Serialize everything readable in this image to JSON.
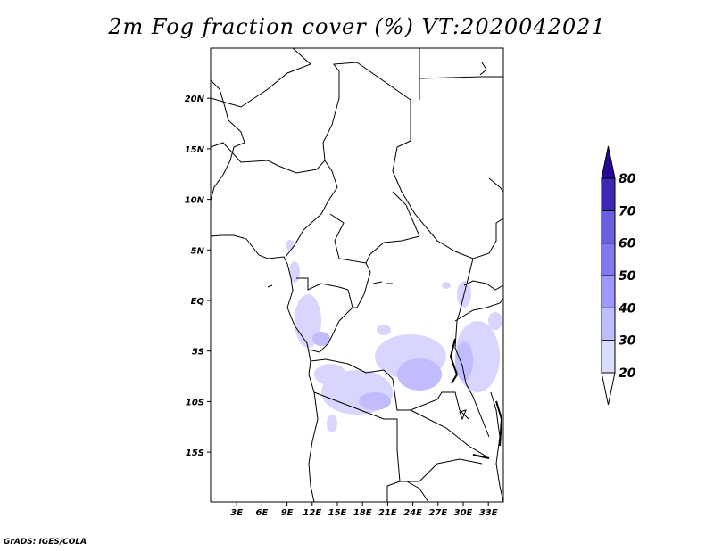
{
  "title": "2m Fog fraction cover (%) VT:2020042021",
  "credit": "GrADS: IGES/COLA",
  "map": {
    "lon_labels": [
      "3E",
      "6E",
      "9E",
      "12E",
      "15E",
      "18E",
      "21E",
      "24E",
      "27E",
      "30E",
      "33E"
    ],
    "lon_values": [
      3,
      6,
      9,
      12,
      15,
      18,
      21,
      24,
      27,
      30,
      33
    ],
    "lat_labels": [
      "20N",
      "15N",
      "10N",
      "5N",
      "EQ",
      "5S",
      "10S",
      "15S"
    ],
    "lat_values": [
      20,
      15,
      10,
      5,
      0,
      -5,
      -10,
      -15
    ]
  },
  "colorbar": {
    "labels": [
      "20",
      "30",
      "40",
      "50",
      "60",
      "70",
      "80"
    ],
    "colors": [
      "#dcdcfe",
      "#c0bcfe",
      "#a097fe",
      "#8478f2",
      "#6a5fe0",
      "#3c28b4",
      "#28089a"
    ]
  }
}
